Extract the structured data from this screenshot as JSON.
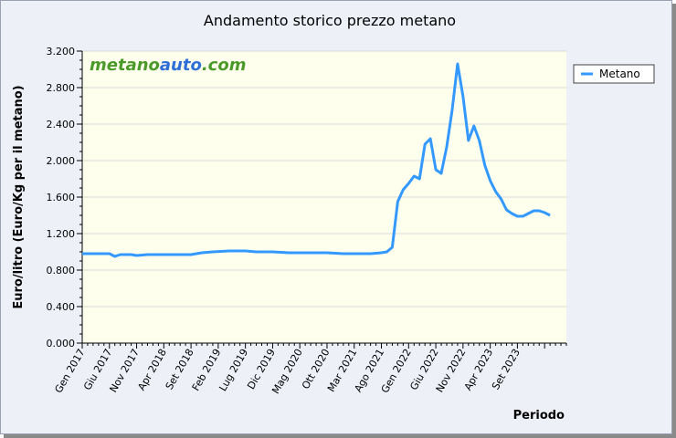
{
  "watermark": {
    "part1": "metano",
    "part2": "auto",
    "part3": ".com",
    "color1": "#4a9a2a",
    "color2": "#2d6fd6",
    "color3": "#4a9a2a"
  },
  "colors": {
    "series": "#3399ff",
    "plot_bg": "#ffffee",
    "frame_bg": "#eef0f8",
    "grid": "#d8d8d8"
  },
  "chart_data": {
    "type": "line",
    "title": "Andamento storico prezzo metano",
    "xlabel": "Periodo",
    "ylabel": "Euro/litro (Euro/Kg per il metano)",
    "ylim": [
      0,
      3.2
    ],
    "yticks": [
      "0.000",
      "0.400",
      "0.800",
      "1.200",
      "1.600",
      "2.000",
      "2.400",
      "2.800",
      "3.200"
    ],
    "ytick_values": [
      0,
      0.4,
      0.8,
      1.2,
      1.6,
      2.0,
      2.4,
      2.8,
      3.2
    ],
    "xlim": [
      "2017-01",
      "2024-06"
    ],
    "xticks": [
      "Gen 2017",
      "Giu 2017",
      "Nov 2017",
      "Apr 2018",
      "Set 2018",
      "Feb 2019",
      "Lug 2019",
      "Dic 2019",
      "Mag 2020",
      "Ott 2020",
      "Mar 2021",
      "Ago 2021",
      "Gen 2022",
      "Giu 2022",
      "Nov 2022",
      "Apr 2023",
      "Set 2023"
    ],
    "grid": true,
    "legend": "right",
    "series": [
      {
        "name": "Metano",
        "points": [
          [
            "2017-01",
            0.98
          ],
          [
            "2017-04",
            0.98
          ],
          [
            "2017-06",
            0.98
          ],
          [
            "2017-07",
            0.95
          ],
          [
            "2017-08",
            0.97
          ],
          [
            "2017-10",
            0.97
          ],
          [
            "2017-11",
            0.96
          ],
          [
            "2018-01",
            0.97
          ],
          [
            "2018-06",
            0.97
          ],
          [
            "2018-09",
            0.97
          ],
          [
            "2018-11",
            0.99
          ],
          [
            "2019-01",
            1.0
          ],
          [
            "2019-04",
            1.01
          ],
          [
            "2019-07",
            1.01
          ],
          [
            "2019-09",
            1.0
          ],
          [
            "2019-12",
            1.0
          ],
          [
            "2020-03",
            0.99
          ],
          [
            "2020-06",
            0.99
          ],
          [
            "2020-10",
            0.99
          ],
          [
            "2021-01",
            0.98
          ],
          [
            "2021-04",
            0.98
          ],
          [
            "2021-06",
            0.98
          ],
          [
            "2021-08",
            0.99
          ],
          [
            "2021-09",
            1.0
          ],
          [
            "2021-10",
            1.05
          ],
          [
            "2021-11",
            1.55
          ],
          [
            "2021-12",
            1.68
          ],
          [
            "2022-01",
            1.75
          ],
          [
            "2022-02",
            1.83
          ],
          [
            "2022-03",
            1.8
          ],
          [
            "2022-04",
            2.18
          ],
          [
            "2022-05",
            2.24
          ],
          [
            "2022-06",
            1.9
          ],
          [
            "2022-07",
            1.86
          ],
          [
            "2022-08",
            2.15
          ],
          [
            "2022-09",
            2.55
          ],
          [
            "2022-10",
            3.06
          ],
          [
            "2022-11",
            2.7
          ],
          [
            "2022-12",
            2.22
          ],
          [
            "2023-01",
            2.38
          ],
          [
            "2023-02",
            2.22
          ],
          [
            "2023-03",
            1.95
          ],
          [
            "2023-04",
            1.78
          ],
          [
            "2023-05",
            1.66
          ],
          [
            "2023-06",
            1.58
          ],
          [
            "2023-07",
            1.46
          ],
          [
            "2023-08",
            1.42
          ],
          [
            "2023-09",
            1.39
          ],
          [
            "2023-10",
            1.39
          ],
          [
            "2023-11",
            1.42
          ],
          [
            "2023-12",
            1.45
          ],
          [
            "2024-01",
            1.45
          ],
          [
            "2024-02",
            1.43
          ],
          [
            "2024-03",
            1.4
          ]
        ]
      }
    ]
  }
}
